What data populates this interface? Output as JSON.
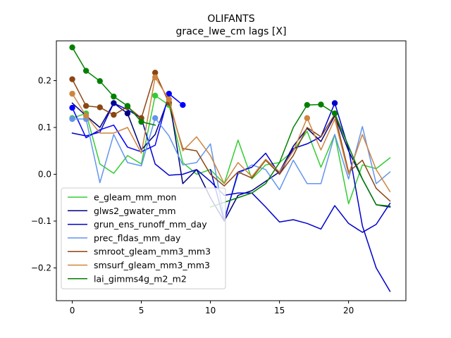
{
  "chart_data": {
    "type": "line",
    "title": "OLIFANTS",
    "subtitle": "grace_lwe_cm lags [X]",
    "xlabel": "",
    "ylabel": "",
    "xlim": [
      -1.15,
      24.15
    ],
    "ylim": [
      -0.27,
      0.285
    ],
    "xticks": [
      0,
      5,
      10,
      15,
      20
    ],
    "xtick_labels": [
      "0",
      "5",
      "10",
      "15",
      "20"
    ],
    "yticks": [
      -0.2,
      -0.1,
      0.0,
      0.1,
      0.2
    ],
    "ytick_labels": [
      "−0.2",
      "−0.1",
      "0.0",
      "0.1",
      "0.2"
    ],
    "grid": false,
    "legend_position": "lower-left",
    "x": [
      0,
      1,
      2,
      3,
      4,
      5,
      6,
      7,
      8,
      9,
      10,
      11,
      12,
      13,
      14,
      15,
      16,
      17,
      18,
      19,
      20,
      21,
      22,
      23
    ],
    "series": [
      {
        "name": "e_gleam_mm_mon",
        "color": "#32cd32",
        "values": [
          0.12,
          0.13,
          0.022,
          0.002,
          0.04,
          0.022,
          0.168,
          0.148,
          0.025,
          0.0,
          0.01,
          -0.02,
          0.073,
          -0.01,
          0.02,
          0.025,
          0.05,
          0.092,
          0.015,
          0.085,
          -0.063,
          0.02,
          0.012,
          0.035
        ],
        "markers": [
          0,
          1,
          6,
          7
        ]
      },
      {
        "name": "glws2_gwater_mm",
        "color": "#000080",
        "values": [
          0.152,
          0.125,
          0.1,
          0.152,
          0.13,
          0.052,
          0.085,
          0.165,
          -0.02,
          0.01,
          -0.05,
          -0.1,
          -0.045,
          -0.035,
          -0.015,
          0.005,
          0.06,
          0.098,
          0.07,
          0.125,
          0.05,
          -0.01,
          -0.065,
          -0.07
        ],
        "markers": [
          3,
          4
        ]
      },
      {
        "name": "grun_ens_runoff_mm_day",
        "color": "#0000cd",
        "values": [
          0.088,
          0.082,
          0.09,
          0.152,
          0.138,
          0.12,
          0.022,
          -0.002,
          0.0,
          0.01,
          -0.015,
          -0.045,
          -0.04,
          -0.04,
          -0.07,
          -0.102,
          -0.097,
          -0.105,
          -0.117,
          -0.067,
          -0.105,
          -0.124,
          -0.107,
          -0.062
        ],
        "markers": []
      },
      {
        "name": "prec_fldas_mm_day",
        "color": "#0000ff",
        "values": [
          0.142,
          0.078,
          0.095,
          0.105,
          0.058,
          0.048,
          0.062,
          0.172,
          0.148,
          null,
          null,
          null,
          null,
          null,
          null,
          null,
          null,
          null,
          null,
          null,
          null,
          null,
          null,
          null
        ],
        "markers": [
          0,
          7,
          8
        ]
      },
      {
        "name": "prec_fldas_mm_day",
        "color": "#6495ed",
        "values": [
          0.118,
          0.118,
          -0.018,
          0.085,
          0.025,
          0.018,
          0.12,
          0.082,
          0.02,
          0.025,
          0.065,
          -0.095,
          0.0,
          0.02,
          0.01,
          -0.033,
          0.03,
          -0.02,
          -0.02,
          0.085,
          -0.01,
          0.102,
          -0.02,
          0.005
        ],
        "markers": [
          0,
          1,
          6
        ]
      },
      {
        "name": "grun_ens_runoff_mm_day",
        "color": "#0000cd",
        "values": [
          null,
          null,
          null,
          null,
          null,
          null,
          null,
          null,
          null,
          null,
          0.01,
          -0.1,
          0.005,
          0.015,
          0.045,
          0.0,
          0.055,
          0.065,
          0.08,
          0.152,
          0.055,
          -0.11,
          -0.2,
          -0.25
        ],
        "markers": [
          19
        ]
      },
      {
        "name": "smroot_gleam_mm3_mm3",
        "color": "#8b4513",
        "values": [
          0.203,
          0.146,
          0.143,
          0.127,
          0.144,
          0.12,
          0.217,
          0.153,
          0.055,
          0.05,
          0.0,
          -0.025,
          0.005,
          -0.008,
          0.03,
          0.0,
          0.04,
          0.1,
          0.08,
          0.128,
          0.005,
          0.03,
          -0.03,
          -0.057
        ],
        "markers": [
          0,
          1,
          2,
          3,
          4,
          5,
          6,
          7
        ]
      },
      {
        "name": "smsurf_gleam_mm3_mm3",
        "color": "#cd853f",
        "values": [
          0.172,
          0.125,
          0.088,
          0.088,
          0.1,
          0.045,
          0.207,
          0.16,
          0.05,
          0.08,
          0.04,
          -0.02,
          0.025,
          -0.005,
          0.032,
          0.005,
          0.05,
          0.12,
          0.052,
          0.118,
          0.0,
          0.085,
          0.01,
          -0.037
        ],
        "markers": [
          0,
          1,
          6,
          7,
          17
        ]
      },
      {
        "name": "lai_gimms4g_m2_m2",
        "color": "#008000",
        "values": [
          0.271,
          0.221,
          0.199,
          0.166,
          0.146,
          0.112,
          0.105,
          null,
          null,
          null,
          -0.07,
          -0.06,
          -0.05,
          -0.04,
          -0.02,
          0.025,
          0.1,
          0.148,
          0.149,
          0.13,
          0.06,
          -0.01,
          -0.065,
          -0.068
        ],
        "markers": [
          0,
          1,
          2,
          3,
          4,
          5,
          17,
          18,
          19
        ]
      }
    ],
    "legend": [
      {
        "label": "e_gleam_mm_mon",
        "color": "#32cd32"
      },
      {
        "label": "glws2_gwater_mm",
        "color": "#000080"
      },
      {
        "label": "grun_ens_runoff_mm_day",
        "color": "#0000cd"
      },
      {
        "label": "prec_fldas_mm_day",
        "color": "#6495ed"
      },
      {
        "label": "smroot_gleam_mm3_mm3",
        "color": "#8b4513"
      },
      {
        "label": "smsurf_gleam_mm3_mm3",
        "color": "#cd853f"
      },
      {
        "label": "lai_gimms4g_m2_m2",
        "color": "#008000"
      }
    ]
  }
}
